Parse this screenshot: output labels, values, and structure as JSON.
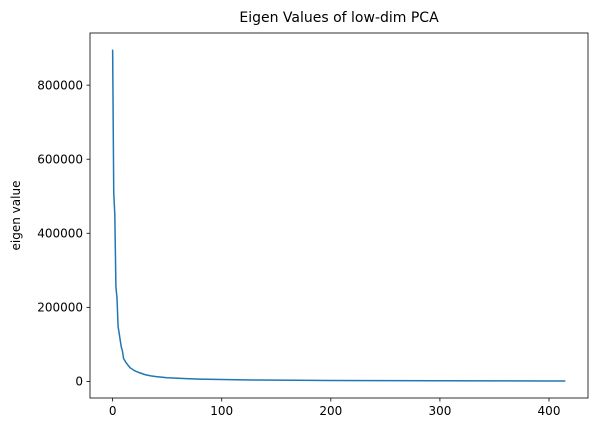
{
  "chart_data": {
    "type": "line",
    "title": "Eigen Values of low-dim PCA",
    "xlabel": "",
    "ylabel": "eigen value",
    "xlim": [
      -20.75,
      435.75
    ],
    "ylim": [
      -44800,
      940800
    ],
    "xticks": [
      0,
      100,
      200,
      300,
      400
    ],
    "yticks": [
      0,
      200000,
      400000,
      600000,
      800000
    ],
    "xtick_labels": [
      "0",
      "100",
      "200",
      "300",
      "400"
    ],
    "ytick_labels": [
      "0",
      "200000",
      "400000",
      "600000",
      "800000"
    ],
    "grid": false,
    "legend": "none",
    "line_color": "#1f77b4",
    "series": [
      {
        "name": "",
        "x": [
          0,
          1,
          2,
          3,
          4,
          5,
          6,
          7,
          8,
          9,
          10,
          11,
          12,
          14,
          16,
          18,
          20,
          25,
          30,
          35,
          40,
          50,
          60,
          70,
          80,
          100,
          120,
          150,
          200,
          250,
          300,
          350,
          400,
          415
        ],
        "y": [
          896000,
          510000,
          450000,
          255000,
          225000,
          148000,
          130000,
          110000,
          92000,
          82000,
          62000,
          57000,
          52000,
          44000,
          37000,
          33000,
          29000,
          23000,
          18000,
          15000,
          13000,
          10000,
          8500,
          7200,
          6300,
          5000,
          4200,
          3400,
          2600,
          2100,
          1700,
          1400,
          1100,
          1000
        ]
      }
    ]
  }
}
